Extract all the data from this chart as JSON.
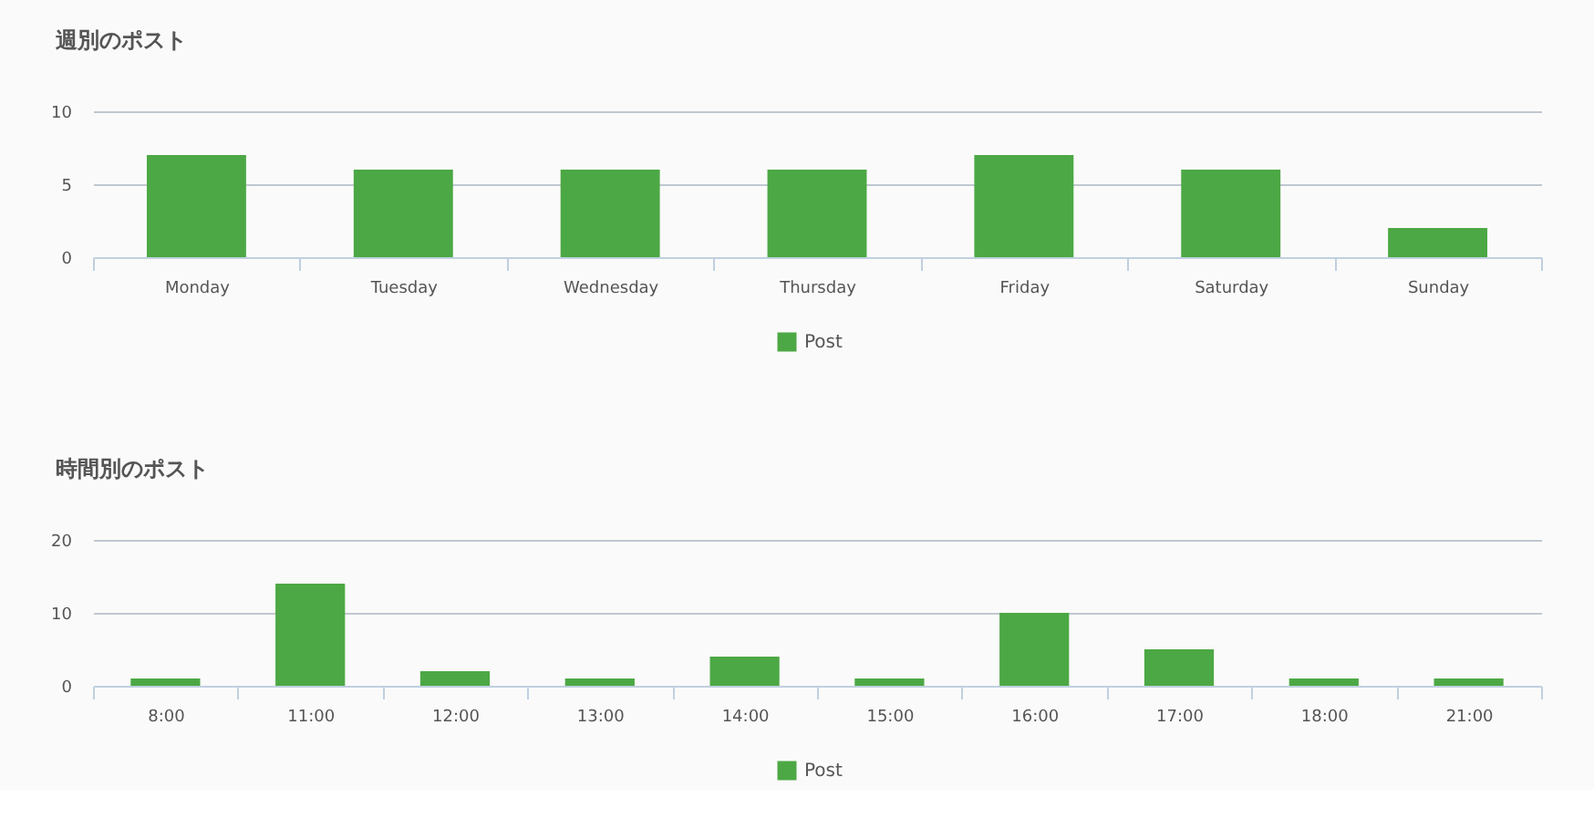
{
  "chart_data": [
    {
      "type": "bar",
      "title": "週別のポスト",
      "categories": [
        "Monday",
        "Tuesday",
        "Wednesday",
        "Thursday",
        "Friday",
        "Saturday",
        "Sunday"
      ],
      "series": [
        {
          "name": "Post",
          "color": "#4ca844",
          "values": [
            7,
            6,
            6,
            6,
            7,
            6,
            2
          ]
        }
      ],
      "ylim": [
        0,
        10
      ],
      "yticks": [
        0,
        5,
        10
      ],
      "grid": "y",
      "legend": "bottom"
    },
    {
      "type": "bar",
      "title": "時間別のポスト",
      "categories": [
        "8:00",
        "11:00",
        "12:00",
        "13:00",
        "14:00",
        "15:00",
        "16:00",
        "17:00",
        "18:00",
        "21:00"
      ],
      "series": [
        {
          "name": "Post",
          "color": "#4ca844",
          "values": [
            1,
            14,
            2,
            1,
            4,
            1,
            10,
            5,
            1,
            1
          ]
        }
      ],
      "ylim": [
        0,
        20
      ],
      "yticks": [
        0,
        10,
        20
      ],
      "grid": "y",
      "legend": "bottom"
    }
  ]
}
